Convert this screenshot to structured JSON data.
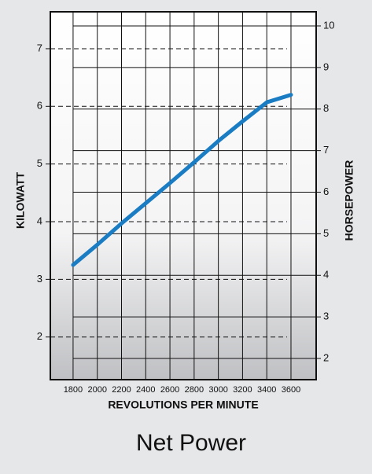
{
  "chart_data": {
    "type": "line",
    "title": "Net Power",
    "x_label": "REVOLUTIONS PER MINUTE",
    "y_label": "KILOWATT",
    "y2_label": "HORSEPOWER",
    "x": [
      1800,
      2000,
      2200,
      2400,
      2600,
      2800,
      3000,
      3200,
      3400,
      3600
    ],
    "values": [
      3.25,
      3.6,
      3.97,
      4.32,
      4.67,
      5.03,
      5.4,
      5.74,
      6.07,
      6.2
    ],
    "color": "#1a7dc4",
    "xlim": [
      1612,
      3808
    ],
    "xticks": [
      1800,
      2000,
      2200,
      2400,
      2600,
      2800,
      3000,
      3200,
      3400,
      3600
    ],
    "ylim": [
      1.26,
      7.64
    ],
    "yticks": [
      2,
      3,
      4,
      5,
      6,
      7
    ],
    "y2lim": [
      1.49,
      10.34
    ],
    "y2ticks": [
      2,
      3,
      4,
      5,
      6,
      7,
      8,
      9,
      10
    ],
    "grid": true
  }
}
